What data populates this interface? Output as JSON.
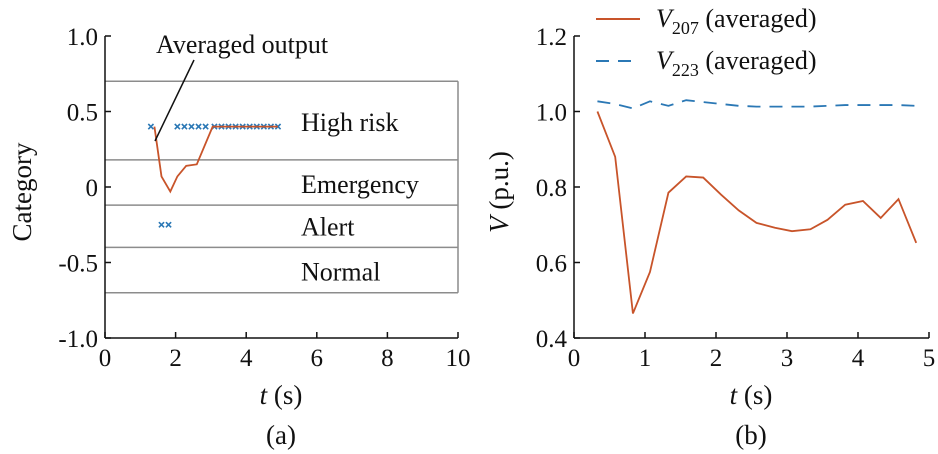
{
  "chart_data": [
    {
      "type": "line",
      "panel_label": "(a)",
      "xlabel": {
        "var": "t",
        "unit": " (s)"
      },
      "ylabel": "Category",
      "xlim": [
        0,
        10
      ],
      "ylim": [
        -1.0,
        1.0
      ],
      "xticks": [
        "0",
        "2",
        "4",
        "6",
        "8",
        "10"
      ],
      "yticks": [
        "1.0",
        "0.5",
        "0",
        "-0.5",
        "-1.0"
      ],
      "region_boundaries": [
        0.7,
        0.18,
        -0.12,
        -0.4,
        -0.7
      ],
      "regions": [
        {
          "label": "High risk",
          "y": 0.43
        },
        {
          "label": "Emergency",
          "y": 0.02
        },
        {
          "label": "Alert",
          "y": -0.26
        },
        {
          "label": "Normal",
          "y": -0.56
        }
      ],
      "annotation": "Averaged output",
      "colors": {
        "line": "#c8542a",
        "markers": "#2b78b5",
        "grid": "#8c8c8c"
      },
      "series": [
        {
          "style": "markers",
          "x": [
            1.3,
            2.05,
            2.25,
            2.45,
            2.65,
            2.85,
            3.1,
            3.3,
            3.5,
            3.7,
            3.9,
            4.1,
            4.3,
            4.5,
            4.7,
            4.9
          ],
          "y": [
            0.4,
            0.4,
            0.4,
            0.4,
            0.4,
            0.4,
            0.4,
            0.4,
            0.4,
            0.4,
            0.4,
            0.4,
            0.4,
            0.4,
            0.4,
            0.4
          ]
        },
        {
          "style": "markers",
          "x": [
            1.6,
            1.8
          ],
          "y": [
            -0.25,
            -0.25
          ]
        },
        {
          "style": "line",
          "x": [
            1.4,
            1.6,
            1.85,
            2.05,
            2.3,
            2.6,
            3.05,
            3.5,
            4.0,
            4.5,
            4.9
          ],
          "y": [
            0.4,
            0.07,
            -0.03,
            0.07,
            0.14,
            0.15,
            0.4,
            0.4,
            0.4,
            0.4,
            0.4
          ]
        }
      ]
    },
    {
      "type": "line",
      "panel_label": "(b)",
      "xlabel": {
        "var": "t",
        "unit": " (s)"
      },
      "ylabel": {
        "var": "V",
        "unit": " (p.u.)"
      },
      "xlim": [
        0,
        5
      ],
      "ylim": [
        0.4,
        1.2
      ],
      "xticks": [
        "0",
        "1",
        "2",
        "3",
        "4",
        "5"
      ],
      "yticks": [
        "1.2",
        "1.0",
        "0.8",
        "0.6",
        "0.4"
      ],
      "colors": {
        "v207": "#c8542a",
        "v223": "#2b78b5"
      },
      "series": [
        {
          "name": {
            "base": "V",
            "sub": "207",
            "suffix": " (averaged)"
          },
          "style": "solid",
          "x": [
            0.33,
            0.58,
            0.83,
            1.07,
            1.33,
            1.58,
            1.82,
            2.07,
            2.32,
            2.57,
            2.83,
            3.07,
            3.33,
            3.57,
            3.82,
            4.07,
            4.32,
            4.57,
            4.82
          ],
          "y": [
            1.0,
            0.88,
            0.465,
            0.575,
            0.785,
            0.828,
            0.825,
            0.78,
            0.738,
            0.705,
            0.692,
            0.683,
            0.688,
            0.713,
            0.753,
            0.763,
            0.718,
            0.768,
            0.652
          ]
        },
        {
          "name": {
            "base": "V",
            "sub": "223",
            "suffix": " (averaged)"
          },
          "style": "dashed",
          "x": [
            0.33,
            0.58,
            0.83,
            1.07,
            1.33,
            1.58,
            1.82,
            2.07,
            2.32,
            2.57,
            2.83,
            3.07,
            3.33,
            3.57,
            3.82,
            4.07,
            4.32,
            4.57,
            4.82
          ],
          "y": [
            1.027,
            1.02,
            1.008,
            1.027,
            1.015,
            1.03,
            1.025,
            1.02,
            1.015,
            1.013,
            1.013,
            1.013,
            1.013,
            1.015,
            1.017,
            1.017,
            1.017,
            1.017,
            1.015
          ]
        }
      ]
    }
  ]
}
